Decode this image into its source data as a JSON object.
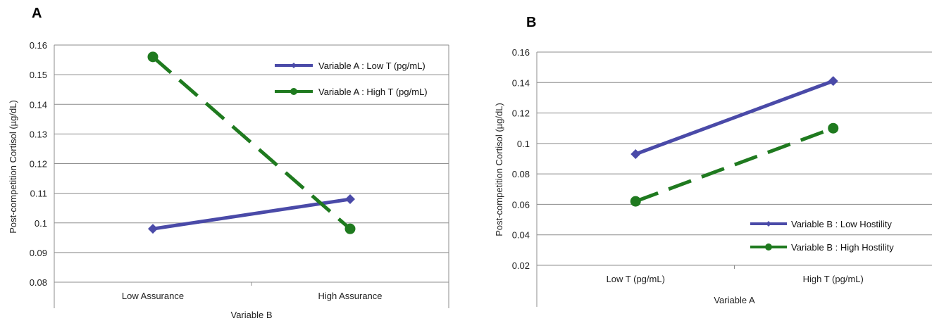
{
  "chart_data": [
    {
      "panel_label": "A",
      "type": "line",
      "xlabel": "Variable B",
      "ylabel": "Post-competition Cortisol (µg/dL)",
      "categories": [
        "Low Assurance",
        "High Assurance"
      ],
      "ylim": [
        0.08,
        0.16
      ],
      "yticks": [
        "0.08",
        "0.09",
        "0.1",
        "0.11",
        "0.12",
        "0.13",
        "0.14",
        "0.15",
        "0.16"
      ],
      "grid": true,
      "legend_position": "top-right",
      "series": [
        {
          "name": "Variable A : Low T (pg/mL)",
          "values": [
            0.098,
            0.108
          ],
          "color": "#4a4aa8",
          "marker": "diamond",
          "dash": "solid"
        },
        {
          "name": "Variable A : High T (pg/mL)",
          "values": [
            0.156,
            0.098
          ],
          "color": "#1f7a1f",
          "marker": "circle",
          "dash": "dashed"
        }
      ]
    },
    {
      "panel_label": "B",
      "type": "line",
      "xlabel": "Variable A",
      "ylabel": "Post-competition Cortisol (µg/dL)",
      "categories": [
        "Low T (pg/mL)",
        "High T (pg/mL)"
      ],
      "ylim": [
        0.02,
        0.16
      ],
      "yticks": [
        "0.02",
        "0.04",
        "0.06",
        "0.08",
        "0.1",
        "0.12",
        "0.14",
        "0.16"
      ],
      "grid": true,
      "legend_position": "bottom-right",
      "series": [
        {
          "name": "Variable B : Low Hostility",
          "values": [
            0.093,
            0.141
          ],
          "color": "#4a4aa8",
          "marker": "diamond",
          "dash": "solid"
        },
        {
          "name": "Variable B : High Hostility",
          "values": [
            0.062,
            0.11
          ],
          "color": "#1f7a1f",
          "marker": "circle",
          "dash": "dashed"
        }
      ]
    }
  ]
}
